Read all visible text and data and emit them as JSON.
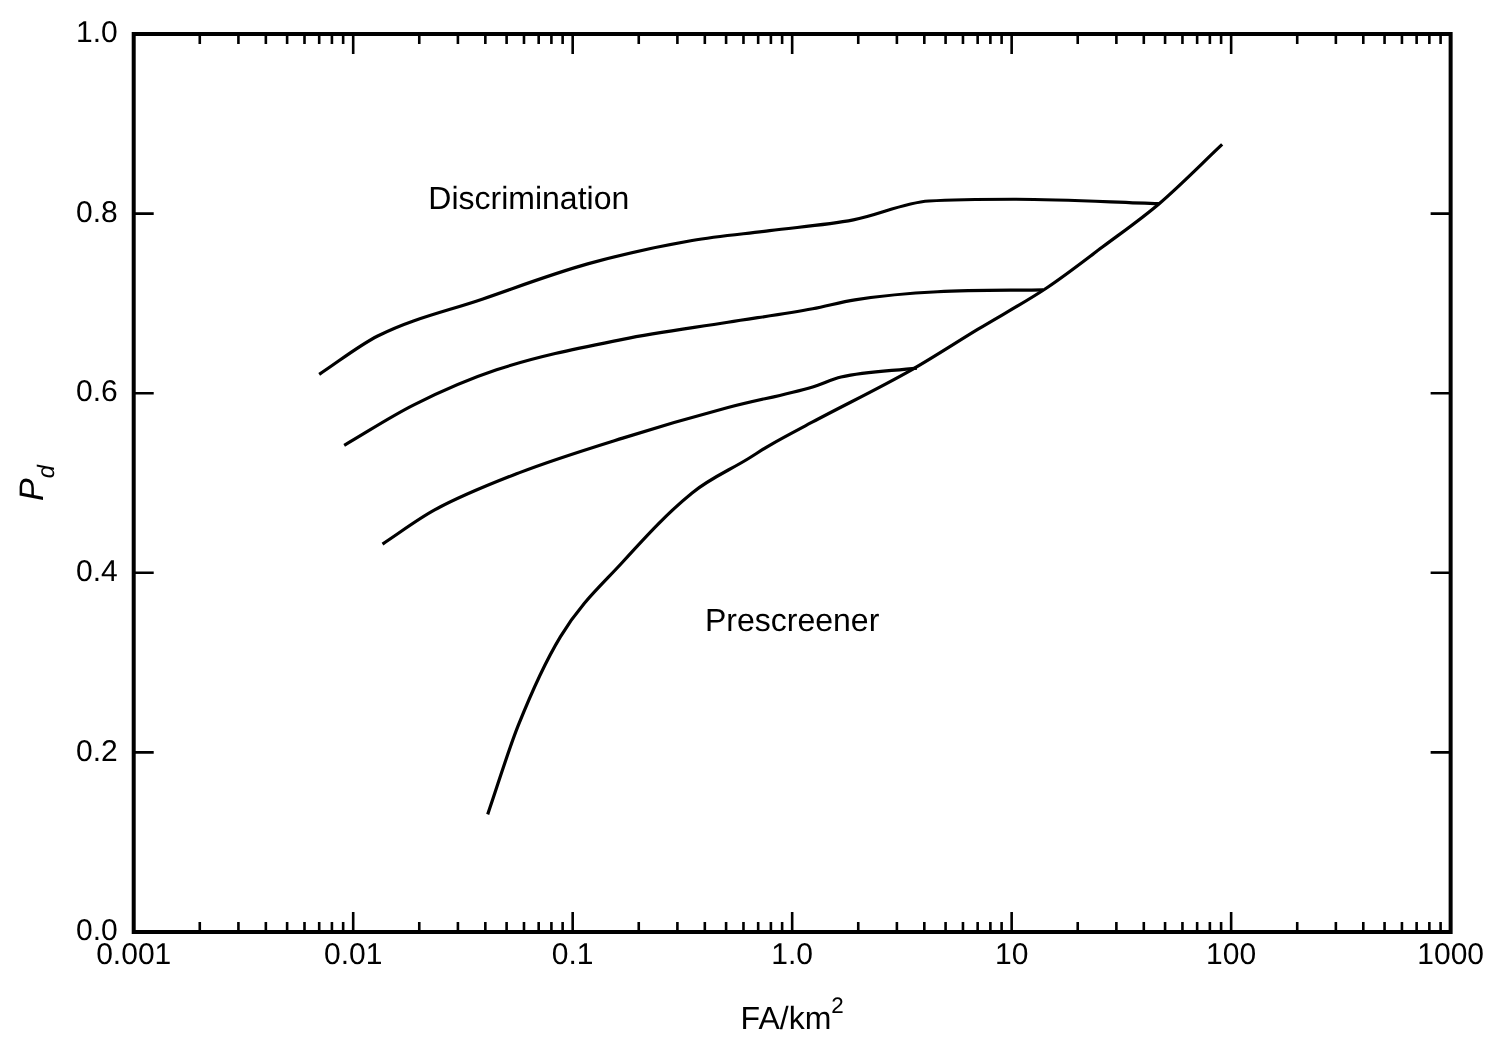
{
  "chart_data": {
    "type": "line",
    "xlabel": "FA/km$^{2}$",
    "ylabel": "P$_{d}$",
    "log": "x",
    "marker": "none",
    "xlim": [
      0.001,
      1000
    ],
    "ylim": [
      0,
      1
    ],
    "xticks": [
      0.001,
      {
        "value": 0.002,
        "label": null
      },
      {
        "value": 0.003,
        "label": null
      },
      {
        "value": 0.004,
        "label": null
      },
      {
        "value": 0.005,
        "label": null
      },
      {
        "value": 0.006,
        "label": null
      },
      {
        "value": 0.007,
        "label": null
      },
      {
        "value": 0.008,
        "label": null
      },
      {
        "value": 0.009,
        "label": null
      },
      0.01,
      {
        "value": 0.02,
        "label": null
      },
      {
        "value": 0.03,
        "label": null
      },
      {
        "value": 0.04,
        "label": null
      },
      {
        "value": 0.05,
        "label": null
      },
      {
        "value": 0.06,
        "label": null
      },
      {
        "value": 0.07,
        "label": null
      },
      {
        "value": 0.08,
        "label": null
      },
      {
        "value": 0.09,
        "label": null
      },
      0.1,
      {
        "value": 0.2,
        "label": null
      },
      {
        "value": 0.3,
        "label": null
      },
      {
        "value": 0.4,
        "label": null
      },
      {
        "value": 0.5,
        "label": null
      },
      {
        "value": 0.6,
        "label": null
      },
      {
        "value": 0.7,
        "label": null
      },
      {
        "value": 0.8,
        "label": null
      },
      {
        "value": 0.9,
        "label": null
      },
      {
        "value": 1,
        "label": "1.0"
      },
      {
        "value": 2,
        "label": null
      },
      {
        "value": 3,
        "label": null
      },
      {
        "value": 4,
        "label": null
      },
      {
        "value": 5,
        "label": null
      },
      {
        "value": 6,
        "label": null
      },
      {
        "value": 7,
        "label": null
      },
      {
        "value": 8,
        "label": null
      },
      {
        "value": 9,
        "label": null
      },
      10,
      {
        "value": 20,
        "label": null
      },
      {
        "value": 30,
        "label": null
      },
      {
        "value": 40,
        "label": null
      },
      {
        "value": 50,
        "label": null
      },
      {
        "value": 60,
        "label": null
      },
      {
        "value": 70,
        "label": null
      },
      {
        "value": 80,
        "label": null
      },
      {
        "value": 90,
        "label": null
      },
      100,
      {
        "value": 200,
        "label": null
      },
      {
        "value": 300,
        "label": null
      },
      {
        "value": 400,
        "label": null
      },
      {
        "value": 500,
        "label": null
      },
      {
        "value": 600,
        "label": null
      },
      {
        "value": 700,
        "label": null
      },
      {
        "value": 800,
        "label": null
      },
      {
        "value": 900,
        "label": null
      },
      1000
    ],
    "yticks": [
      {
        "value": 0,
        "label": "0.0"
      },
      {
        "value": 0.2,
        "label": "0.2"
      },
      {
        "value": 0.4,
        "label": "0.4"
      },
      {
        "value": 0.6,
        "label": "0.6"
      },
      {
        "value": 0.8,
        "label": "0.8"
      },
      {
        "value": 1,
        "label": "1.0"
      }
    ],
    "series": [
      {
        "color": "#000000",
        "x": [
          0.007,
          0.013,
          0.039,
          0.117,
          0.35,
          0.79,
          1.9,
          4.2,
          10.2,
          47
        ],
        "values": [
          0.621,
          0.664,
          0.705,
          0.744,
          0.77,
          0.781,
          0.793,
          0.814,
          0.816,
          0.811
        ]
      },
      {
        "color": "#000000",
        "x": [
          0.0091,
          0.0189,
          0.045,
          0.169,
          0.51,
          1.24,
          1.93,
          4.6,
          13.9
        ],
        "values": [
          0.542,
          0.587,
          0.626,
          0.66,
          0.679,
          0.694,
          0.704,
          0.713,
          0.715
        ]
      },
      {
        "color": "#000000",
        "x": [
          0.0136,
          0.0235,
          0.0565,
          0.169,
          0.51,
          1.24,
          1.67,
          3.7
        ],
        "values": [
          0.432,
          0.47,
          0.511,
          0.55,
          0.584,
          0.607,
          0.618,
          0.628
        ]
      },
      {
        "color": "#000000",
        "x": [
          0.041,
          0.0565,
          0.088,
          0.169,
          0.35,
          0.63,
          0.79,
          1.24,
          3.5,
          7,
          14.6,
          26,
          47,
          91
        ],
        "values": [
          0.131,
          0.23,
          0.329,
          0.412,
          0.489,
          0.527,
          0.542,
          0.568,
          0.626,
          0.671,
          0.718,
          0.763,
          0.811,
          0.877
        ]
      }
    ],
    "annotations": [
      "Discrimination",
      "Prescreener"
    ]
  }
}
